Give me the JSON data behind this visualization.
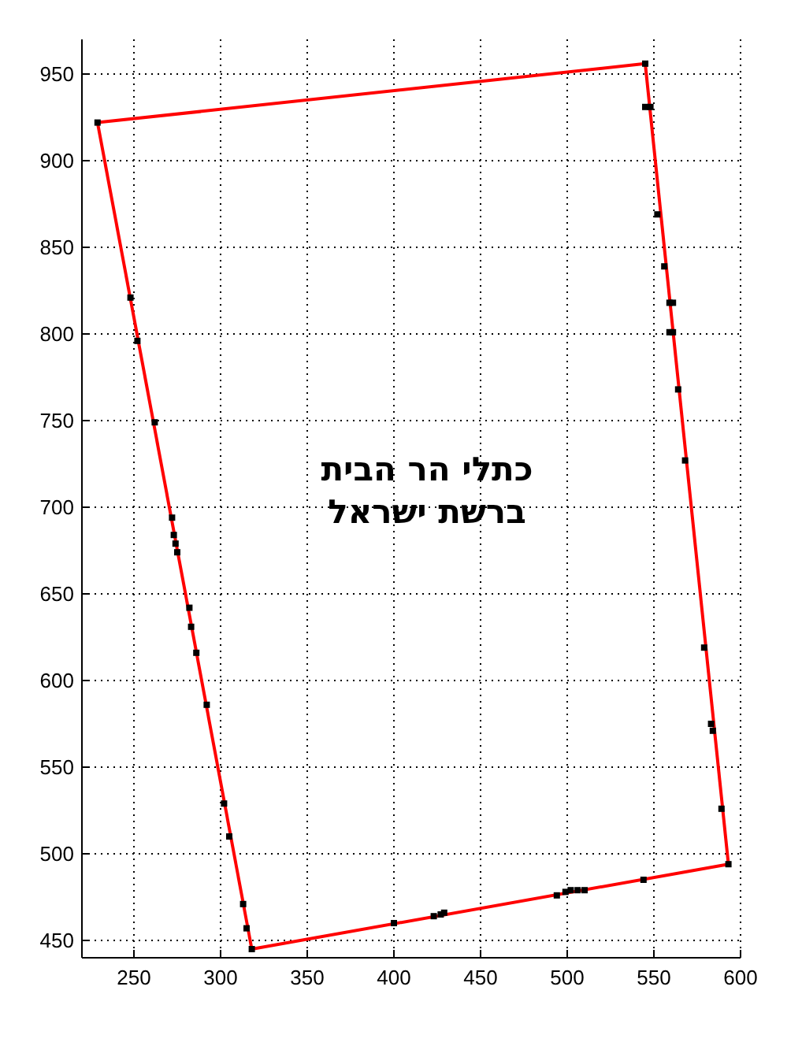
{
  "chart_data": {
    "type": "line",
    "xlim": [
      220,
      600
    ],
    "ylim": [
      440,
      970
    ],
    "xticks": [
      250,
      300,
      350,
      400,
      450,
      500,
      550,
      600
    ],
    "yticks": [
      450,
      500,
      550,
      600,
      650,
      700,
      750,
      800,
      850,
      900,
      950
    ],
    "grid": true,
    "annotations": [
      "כתלי הר הבית",
      "ברשת ישראל"
    ],
    "series": [
      {
        "color": "#ff0000",
        "x": [
          229,
          545
        ],
        "values": [
          922,
          956
        ]
      },
      {
        "color": "#ff0000",
        "x": [
          545,
          593
        ],
        "values": [
          956,
          494
        ]
      },
      {
        "color": "#ff0000",
        "x": [
          318,
          593
        ],
        "values": [
          445,
          494
        ]
      },
      {
        "color": "#ff0000",
        "x": [
          229,
          318
        ],
        "values": [
          922,
          445
        ]
      },
      {
        "type": "scatter",
        "color": "#000000",
        "marker": "square",
        "x": [
          229,
          545,
          545,
          548,
          552,
          556,
          559,
          561,
          559,
          561,
          564,
          568,
          579,
          583,
          584,
          589,
          593,
          544,
          510,
          506,
          502,
          499,
          494,
          429,
          427,
          423,
          400,
          318,
          315,
          313,
          305,
          302,
          292,
          286,
          283,
          282,
          275,
          274,
          273,
          272,
          262,
          252,
          248
        ],
        "values": [
          922,
          956,
          931,
          931,
          869,
          839,
          818,
          818,
          801,
          801,
          768,
          727,
          619,
          575,
          571,
          526,
          494,
          485,
          479,
          479,
          479,
          478,
          476,
          466,
          465,
          464,
          460,
          445,
          457,
          471,
          510,
          529,
          586,
          616,
          631,
          642,
          674,
          679,
          684,
          694,
          749,
          796,
          821
        ]
      }
    ]
  }
}
